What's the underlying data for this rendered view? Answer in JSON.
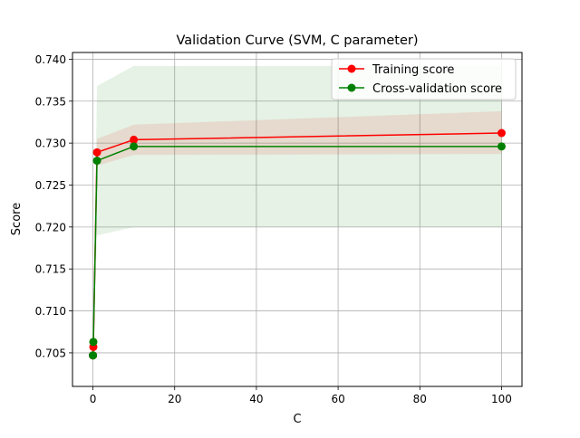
{
  "chart_data": {
    "type": "line",
    "title": "Validation Curve (SVM, C parameter)",
    "xlabel": "C",
    "ylabel": "Score",
    "xlim": [
      -5,
      105
    ],
    "ylim": [
      0.701,
      0.7408
    ],
    "xticks": [
      0,
      20,
      40,
      60,
      80,
      100
    ],
    "yticks": [
      0.705,
      0.71,
      0.715,
      0.72,
      0.725,
      0.73,
      0.735,
      0.74
    ],
    "xtick_labels": [
      "0",
      "20",
      "40",
      "60",
      "80",
      "100"
    ],
    "ytick_labels": [
      "0.705",
      "0.710",
      "0.715",
      "0.720",
      "0.725",
      "0.730",
      "0.735",
      "0.740"
    ],
    "grid": true,
    "legend_position": "top-right",
    "x": [
      0.001,
      0.01,
      0.1,
      1,
      10,
      100
    ],
    "series": [
      {
        "name": "Training score",
        "color": "#ff0000",
        "marker": "circle",
        "values": [
          0.7047,
          0.7047,
          0.7057,
          0.7289,
          0.7304,
          0.7312
        ],
        "band_lower": [
          0.7045,
          0.7045,
          0.7052,
          0.7273,
          0.7286,
          0.7287
        ],
        "band_upper": [
          0.7049,
          0.7049,
          0.7062,
          0.7305,
          0.7322,
          0.7338
        ]
      },
      {
        "name": "Cross-validation score",
        "color": "#008000",
        "marker": "circle",
        "values": [
          0.7047,
          0.7047,
          0.7063,
          0.7279,
          0.7296,
          0.7296
        ],
        "band_lower": [
          0.704,
          0.704,
          0.7058,
          0.719,
          0.72,
          0.72
        ],
        "band_upper": [
          0.7054,
          0.7054,
          0.7068,
          0.7368,
          0.7392,
          0.7392
        ]
      }
    ]
  }
}
